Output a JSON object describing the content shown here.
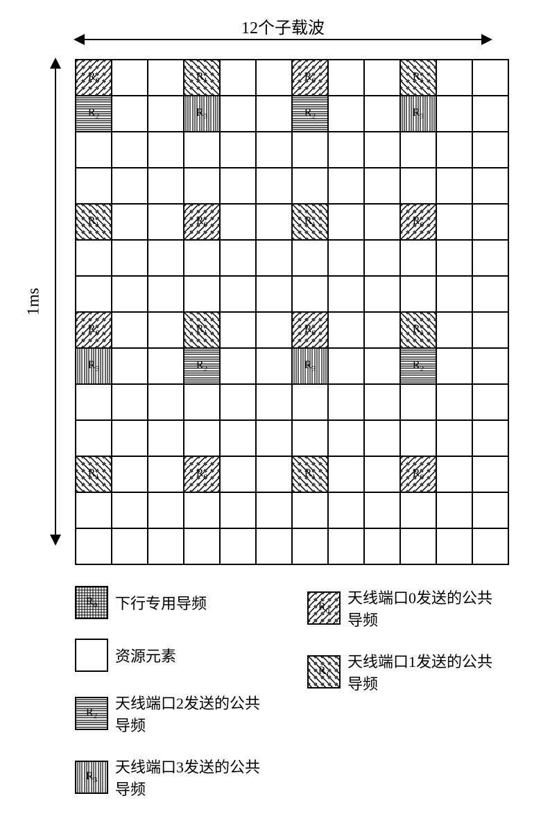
{
  "axes": {
    "top_label": "12个子载波",
    "left_label": "1ms"
  },
  "grid": {
    "rows": 14,
    "cols": 12,
    "cell_border_color": "#000000",
    "cells": [
      {
        "r": 0,
        "c": 0,
        "type": "R0"
      },
      {
        "r": 0,
        "c": 3,
        "type": "R1"
      },
      {
        "r": 0,
        "c": 6,
        "type": "R0"
      },
      {
        "r": 0,
        "c": 9,
        "type": "R1"
      },
      {
        "r": 1,
        "c": 0,
        "type": "R2"
      },
      {
        "r": 1,
        "c": 3,
        "type": "R3"
      },
      {
        "r": 1,
        "c": 6,
        "type": "R2"
      },
      {
        "r": 1,
        "c": 9,
        "type": "R3"
      },
      {
        "r": 4,
        "c": 0,
        "type": "R1"
      },
      {
        "r": 4,
        "c": 3,
        "type": "R0"
      },
      {
        "r": 4,
        "c": 6,
        "type": "R1"
      },
      {
        "r": 4,
        "c": 9,
        "type": "R0"
      },
      {
        "r": 7,
        "c": 0,
        "type": "R0"
      },
      {
        "r": 7,
        "c": 3,
        "type": "R1"
      },
      {
        "r": 7,
        "c": 6,
        "type": "R0"
      },
      {
        "r": 7,
        "c": 9,
        "type": "R1"
      },
      {
        "r": 8,
        "c": 0,
        "type": "R3"
      },
      {
        "r": 8,
        "c": 3,
        "type": "R2"
      },
      {
        "r": 8,
        "c": 6,
        "type": "R3"
      },
      {
        "r": 8,
        "c": 9,
        "type": "R2"
      },
      {
        "r": 11,
        "c": 0,
        "type": "R1"
      },
      {
        "r": 11,
        "c": 3,
        "type": "R0"
      },
      {
        "r": 11,
        "c": 6,
        "type": "R1"
      },
      {
        "r": 11,
        "c": 9,
        "type": "R0"
      }
    ]
  },
  "types": {
    "R0": {
      "pattern": "pat-diag-ne",
      "label_html": "R<sub>0</sub>"
    },
    "R1": {
      "pattern": "pat-diag-nw",
      "label_html": "R<sub>1</sub>"
    },
    "R2": {
      "pattern": "pat-horiz",
      "label_html": "R<sub>2</sub>"
    },
    "R3": {
      "pattern": "pat-vert",
      "label_html": "R<sub>3</sub>"
    },
    "DED": {
      "pattern": "pat-cross",
      "label_html": "R<sub>0</sub>"
    },
    "RE": {
      "pattern": "",
      "label_html": ""
    }
  },
  "legend": {
    "left": [
      {
        "type": "DED",
        "text": "下行专用导频"
      },
      {
        "type": "RE",
        "text": "资源元素"
      },
      {
        "type": "R2",
        "text": "天线端口2发送的公共导频"
      },
      {
        "type": "R3",
        "text": "天线端口3发送的公共导频"
      }
    ],
    "right": [
      {
        "type": "R0",
        "text": "天线端口0发送的公共导频"
      },
      {
        "type": "R1",
        "text": "天线端口1发送的公共导频"
      }
    ]
  },
  "style": {
    "background_color": "#ffffff",
    "line_color": "#000000",
    "title_fontsize_pt": 18,
    "legend_fontsize_pt": 16,
    "cell_label_fontsize_pt": 12
  }
}
